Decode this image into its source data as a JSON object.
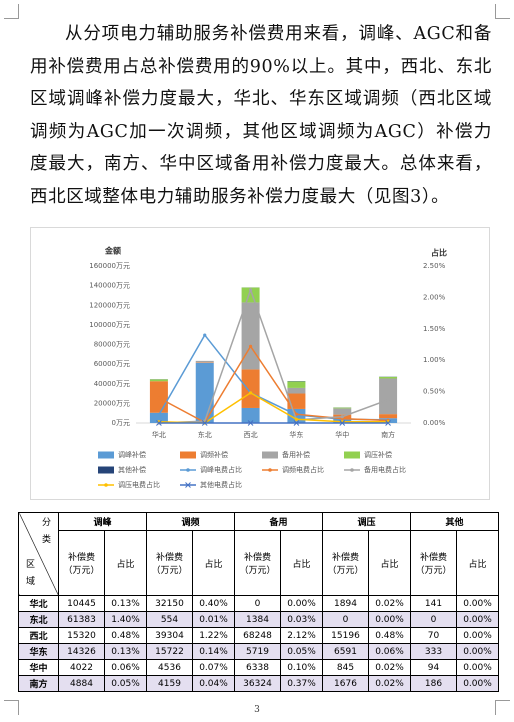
{
  "paragraph": "从分项电力辅助服务补偿费用来看，调峰、AGC和备用补偿费用占总补偿费用的90%以上。其中，西北、东北区域调峰补偿力度最大，华北、华东区域调频（西北区域调频为AGC加一次调频，其他区域调频为AGC）补偿力度最大，南方、华中区域备用补偿力度最大。总体来看，西北区域整体电力辅助服务补偿力度最大（见图3）。",
  "chart_data": {
    "type": "bar",
    "stacked": true,
    "y_title": "金额",
    "y2_title": "占比",
    "legend": "bottom",
    "categories": [
      "华北",
      "东北",
      "西北",
      "华东",
      "华中",
      "南方"
    ],
    "ylim": [
      0,
      160000
    ],
    "yticks": [
      {
        "value": 0,
        "label": "0万元"
      },
      {
        "value": 20000,
        "label": "20000万元"
      },
      {
        "value": 40000,
        "label": "40000万元"
      },
      {
        "value": 60000,
        "label": "60000万元"
      },
      {
        "value": 80000,
        "label": "80000万元"
      },
      {
        "value": 100000,
        "label": "100000万元"
      },
      {
        "value": 120000,
        "label": "120000万元"
      },
      {
        "value": 140000,
        "label": "140000万元"
      },
      {
        "value": 160000,
        "label": "160000万元"
      }
    ],
    "y2lim": [
      0,
      2.5
    ],
    "y2ticks": [
      {
        "value": 0,
        "label": "0.00%"
      },
      {
        "value": 0.5,
        "label": "0.50%"
      },
      {
        "value": 1,
        "label": "1.00%"
      },
      {
        "value": 1.5,
        "label": "1.50%"
      },
      {
        "value": 2,
        "label": "2.00%"
      },
      {
        "value": 2.5,
        "label": "2.50%"
      }
    ],
    "series": [
      {
        "name": "调峰补偿",
        "type": "bar",
        "color": "#5b9bd5",
        "values": [
          10445,
          61383,
          15320,
          14326,
          4022,
          4884
        ]
      },
      {
        "name": "调频补偿",
        "type": "bar",
        "color": "#ed7d31",
        "values": [
          32150,
          554,
          39304,
          15722,
          4536,
          4159
        ]
      },
      {
        "name": "备用补偿",
        "type": "bar",
        "color": "#a5a5a5",
        "values": [
          0,
          1384,
          68248,
          5719,
          6338,
          36324
        ]
      },
      {
        "name": "调压补偿",
        "type": "bar",
        "color": "#92d050",
        "values": [
          1894,
          0,
          15196,
          6591,
          845,
          1676
        ]
      },
      {
        "name": "其他补偿",
        "type": "bar",
        "color": "#264478",
        "values": [
          141,
          0,
          70,
          333,
          94,
          186
        ]
      },
      {
        "name": "调峰电费占比",
        "type": "line",
        "axis": "y2",
        "marker": "circle",
        "color": "#5b9bd5",
        "values": [
          0.13,
          1.4,
          0.48,
          0.13,
          0.06,
          0.05
        ]
      },
      {
        "name": "调频电费占比",
        "type": "line",
        "axis": "y2",
        "marker": "circle",
        "color": "#ed7d31",
        "values": [
          0.4,
          0.01,
          1.22,
          0.14,
          0.07,
          0.04
        ]
      },
      {
        "name": "备用电费占比",
        "type": "line",
        "axis": "y2",
        "marker": "circle",
        "color": "#a5a5a5",
        "values": [
          0,
          0.03,
          2.12,
          0.05,
          0.1,
          0.37
        ]
      },
      {
        "name": "调压电费占比",
        "type": "line",
        "axis": "y2",
        "marker": "circle",
        "color": "#ffc000",
        "values": [
          0.02,
          0,
          0.48,
          0.06,
          0.02,
          0.02
        ]
      },
      {
        "name": "其他电费占比",
        "type": "line",
        "axis": "y2",
        "marker": "x",
        "color": "#4472c4",
        "values": [
          0,
          0,
          0,
          0,
          0,
          0
        ]
      }
    ]
  },
  "table": {
    "corner_top": "分类",
    "corner_bottom": "区域",
    "groups": [
      "调峰",
      "调频",
      "备用",
      "调压",
      "其他"
    ],
    "subheaders": [
      "补偿费\n（万元）",
      "占比"
    ],
    "rows": [
      [
        "华北",
        "10445",
        "0.13%",
        "32150",
        "0.40%",
        "0",
        "0.00%",
        "1894",
        "0.02%",
        "141",
        "0.00%"
      ],
      [
        "东北",
        "61383",
        "1.40%",
        "554",
        "0.01%",
        "1384",
        "0.03%",
        "0",
        "0.00%",
        "0",
        "0.00%"
      ],
      [
        "西北",
        "15320",
        "0.48%",
        "39304",
        "1.22%",
        "68248",
        "2.12%",
        "15196",
        "0.48%",
        "70",
        "0.00%"
      ],
      [
        "华东",
        "14326",
        "0.13%",
        "15722",
        "0.14%",
        "5719",
        "0.05%",
        "6591",
        "0.06%",
        "333",
        "0.00%"
      ],
      [
        "华中",
        "4022",
        "0.06%",
        "4536",
        "0.07%",
        "6338",
        "0.10%",
        "845",
        "0.02%",
        "94",
        "0.00%"
      ],
      [
        "南方",
        "4884",
        "0.05%",
        "4159",
        "0.04%",
        "36324",
        "0.37%",
        "1676",
        "0.02%",
        "186",
        "0.00%"
      ]
    ]
  },
  "page_number": "3"
}
